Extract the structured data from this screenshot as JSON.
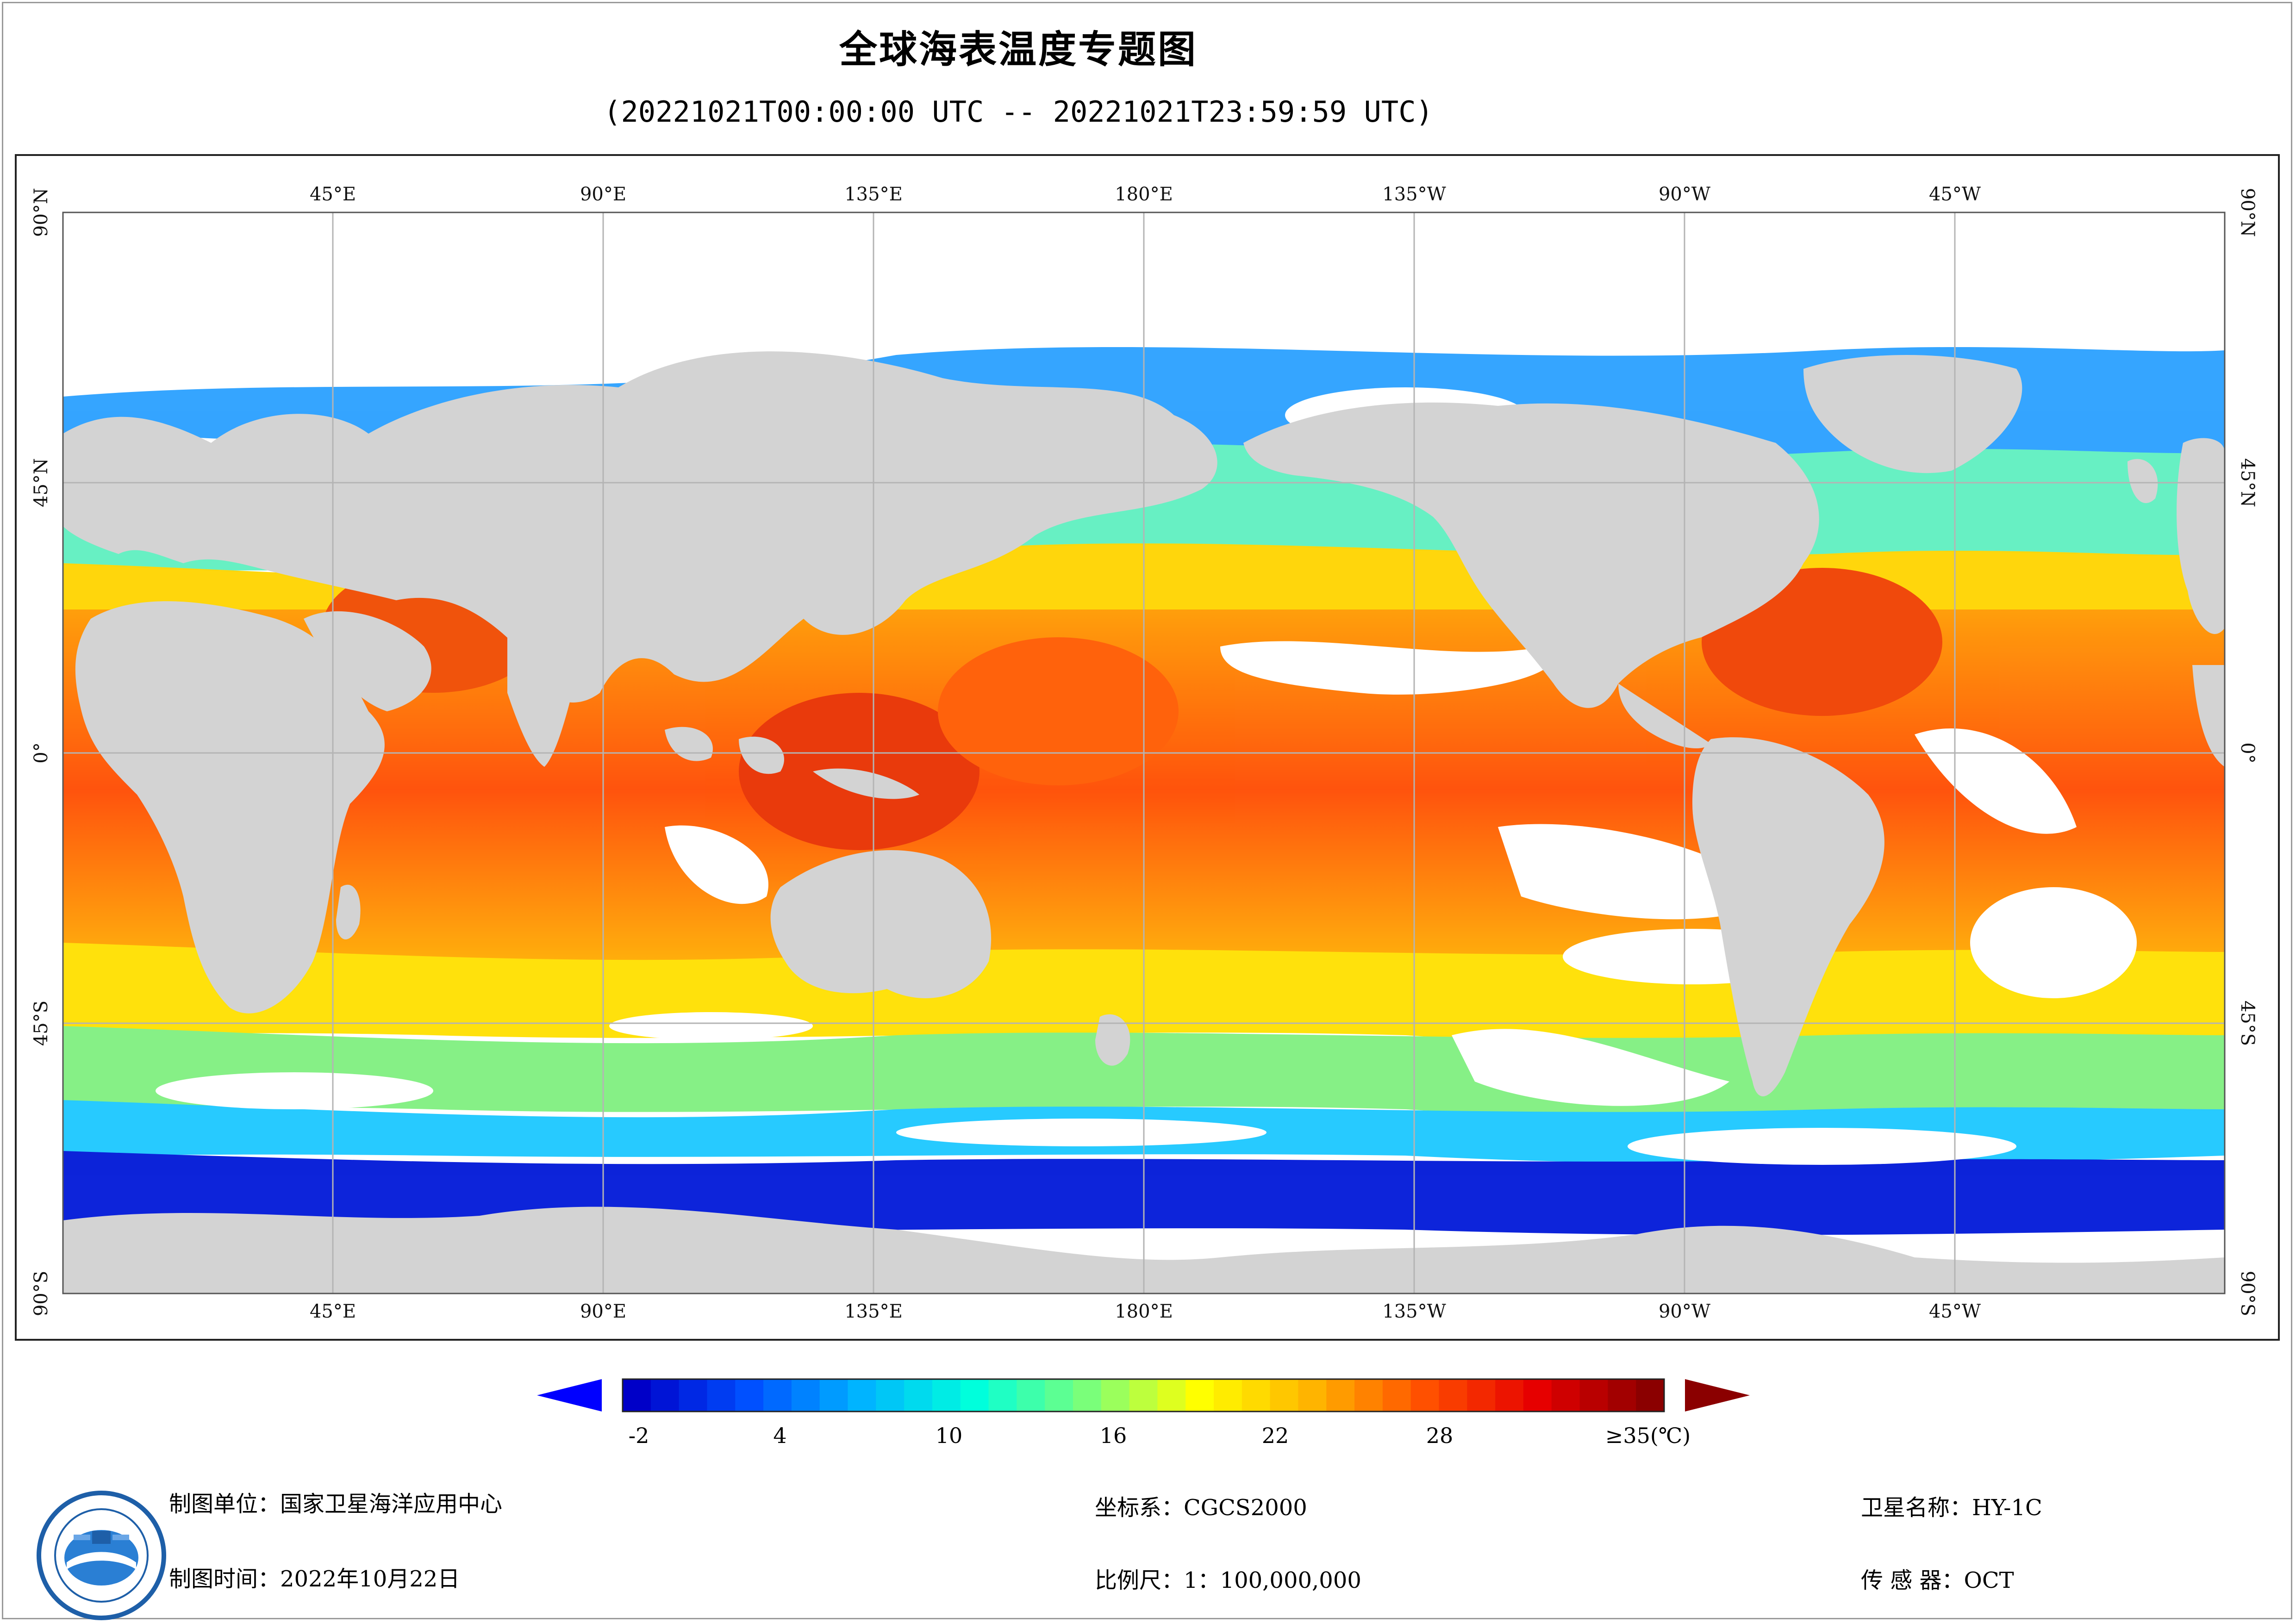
{
  "header": {
    "title": "全球海表温度专题图",
    "subtitle": "(20221021T00:00:00 UTC -- 20221021T23:59:59 UTC)"
  },
  "map": {
    "top_lon_labels": [
      "45°E",
      "90°E",
      "135°E",
      "180°E",
      "135°W",
      "90°W",
      "45°W"
    ],
    "bottom_lon_labels": [
      "45°E",
      "90°E",
      "135°E",
      "180°E",
      "135°W",
      "90°W",
      "45°W"
    ],
    "lat_labels": [
      "90°N",
      "45°N",
      "0°",
      "45°S",
      "90°S"
    ],
    "land_color": "#d3d3d3",
    "nodata_color": "#ffffff",
    "grid_color": "#b4b4b4"
  },
  "colorbar": {
    "tick_labels": [
      "-2",
      "4",
      "10",
      "16",
      "22",
      "28",
      "≥35(℃)"
    ],
    "tick_values": [
      -2,
      4,
      10,
      16,
      22,
      28,
      35
    ],
    "min": -2,
    "max": 35,
    "unit": "℃",
    "colors": [
      "#0000c8",
      "#0050ff",
      "#00b4ff",
      "#00ffdc",
      "#7aff7a",
      "#ffff00",
      "#ffb400",
      "#ff5000",
      "#e60000",
      "#8b0000"
    ],
    "under_arrow_color": "#0000ff",
    "over_arrow_color": "#8b0000"
  },
  "footer": {
    "producer": "制图单位：国家卫星海洋应用中心",
    "date": "制图时间：2022年10月22日",
    "crs": "坐标系：CGCS2000",
    "scale": "比例尺：1：100,000,000",
    "satellite": "卫星名称：HY-1C",
    "sensor": "传 感 器：OCT"
  },
  "logo": {
    "icon": "nsoas-emblem-icon"
  }
}
